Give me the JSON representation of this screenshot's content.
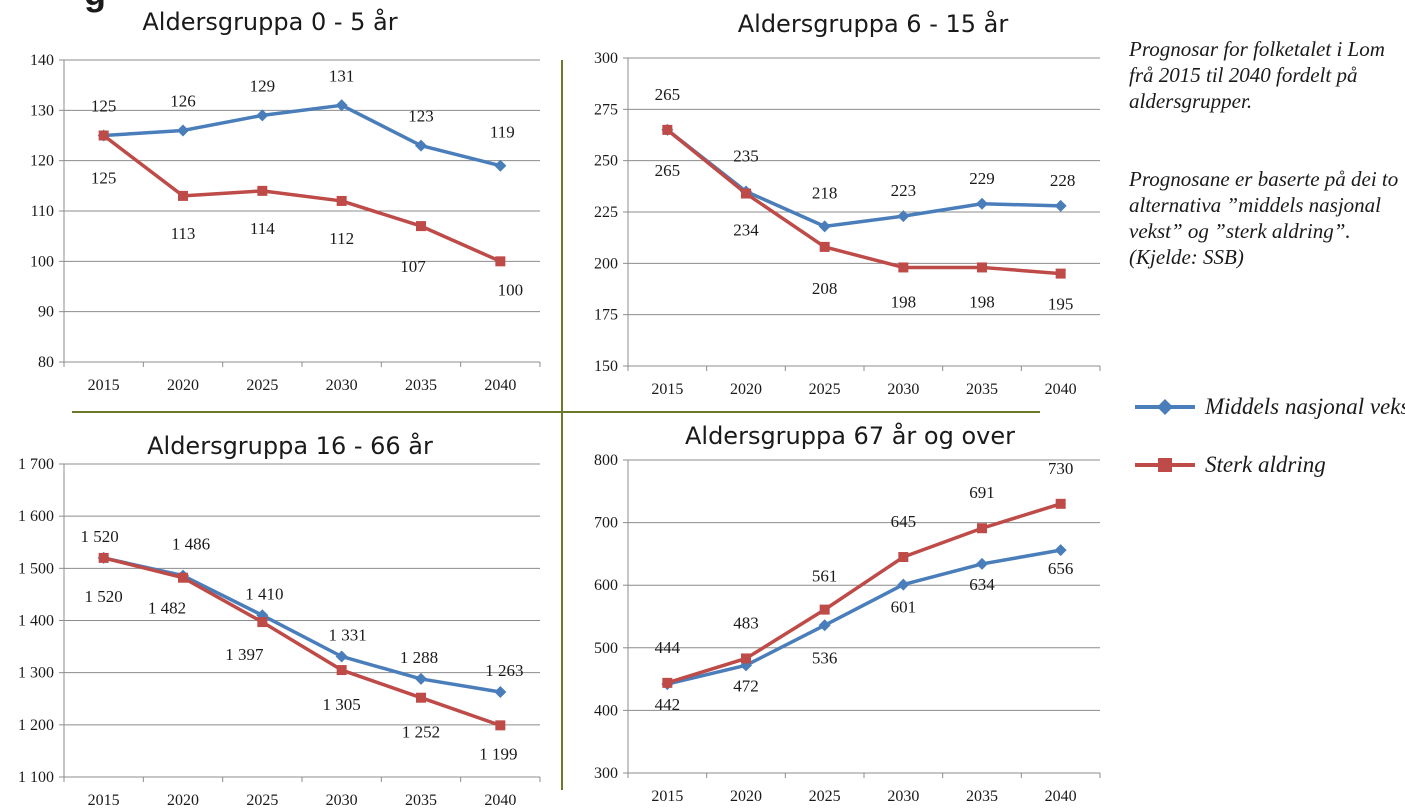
{
  "heading_fragment": "g",
  "note": {
    "paragraph1": "Prognosar for folketalet i Lom  frå 2015 til 2040 fordelt på aldersgrupper.",
    "paragraph2": "Prognosane er baserte på dei to alternativa ”middels nasjonal vekst” og ”sterk aldring”. (Kjelde: SSB)"
  },
  "legend": {
    "items": [
      {
        "label": "Middels nasjonal vekst",
        "color": "#4a7ebb",
        "marker": "diamond"
      },
      {
        "label": "Sterk aldring",
        "color": "#be4b48",
        "marker": "square"
      }
    ]
  },
  "colors": {
    "middels": "#4a7ebb",
    "sterk": "#be4b48",
    "divider": "#6b7a2a",
    "grid": "#8c8c8c"
  },
  "chart_data": [
    {
      "type": "line",
      "title": "Aldersgruppa 0 - 5 år",
      "categories": [
        "2015",
        "2020",
        "2025",
        "2030",
        "2035",
        "2040"
      ],
      "ylim": [
        80,
        140
      ],
      "yticks": [
        "80",
        "90",
        "100",
        "110",
        "120",
        "130",
        "140"
      ],
      "grid": true,
      "series": [
        {
          "name": "Middels nasjonal vekst",
          "values": [
            125,
            126,
            129,
            131,
            123,
            119
          ],
          "labels": [
            "125",
            "126",
            "129",
            "131",
            "123",
            "119"
          ]
        },
        {
          "name": "Sterk aldring",
          "values": [
            125,
            113,
            114,
            112,
            107,
            100
          ],
          "labels": [
            "125",
            "113",
            "114",
            "112",
            "107",
            "100"
          ]
        }
      ]
    },
    {
      "type": "line",
      "title": "Aldersgruppa 6 - 15 år",
      "categories": [
        "2015",
        "2020",
        "2025",
        "2030",
        "2035",
        "2040"
      ],
      "ylim": [
        150,
        300
      ],
      "yticks": [
        "150",
        "175",
        "200",
        "225",
        "250",
        "275",
        "300"
      ],
      "grid": true,
      "series": [
        {
          "name": "Middels nasjonal vekst",
          "values": [
            265,
            235,
            218,
            223,
            229,
            228
          ],
          "labels": [
            "265",
            "235",
            "218",
            "223",
            "229",
            "228"
          ]
        },
        {
          "name": "Sterk aldring",
          "values": [
            265,
            234,
            208,
            198,
            198,
            195
          ],
          "labels": [
            "265",
            "234",
            "208",
            "198",
            "198",
            "195"
          ]
        }
      ]
    },
    {
      "type": "line",
      "title": "Aldersgruppa 16 - 66 år",
      "categories": [
        "2015",
        "2020",
        "2025",
        "2030",
        "2035",
        "2040"
      ],
      "ylim": [
        1100,
        1700
      ],
      "yticks": [
        "1 100",
        "1 200",
        "1 300",
        "1 400",
        "1 500",
        "1 600",
        "1 700"
      ],
      "grid": true,
      "series": [
        {
          "name": "Middels nasjonal vekst",
          "values": [
            1520,
            1486,
            1410,
            1331,
            1288,
            1263
          ],
          "labels": [
            "1 520",
            "1 486",
            "1 410",
            "1 331",
            "1 288",
            "1 263"
          ]
        },
        {
          "name": "Sterk aldring",
          "values": [
            1520,
            1482,
            1397,
            1305,
            1252,
            1199
          ],
          "labels": [
            "1 520",
            "1 482",
            "1 397",
            "1 305",
            "1 252",
            "1 199"
          ]
        }
      ]
    },
    {
      "type": "line",
      "title": "Aldersgruppa 67 år og over",
      "categories": [
        "2015",
        "2020",
        "2025",
        "2030",
        "2035",
        "2040"
      ],
      "ylim": [
        300,
        800
      ],
      "yticks": [
        "300",
        "400",
        "500",
        "600",
        "700",
        "800"
      ],
      "grid": true,
      "series": [
        {
          "name": "Middels nasjonal vekst",
          "values": [
            442,
            472,
            536,
            601,
            634,
            656
          ],
          "labels": [
            "442",
            "472",
            "536",
            "601",
            "634",
            "656"
          ]
        },
        {
          "name": "Sterk aldring",
          "values": [
            444,
            483,
            561,
            645,
            691,
            730
          ],
          "labels": [
            "444",
            "483",
            "561",
            "645",
            "691",
            "730"
          ]
        }
      ]
    }
  ]
}
